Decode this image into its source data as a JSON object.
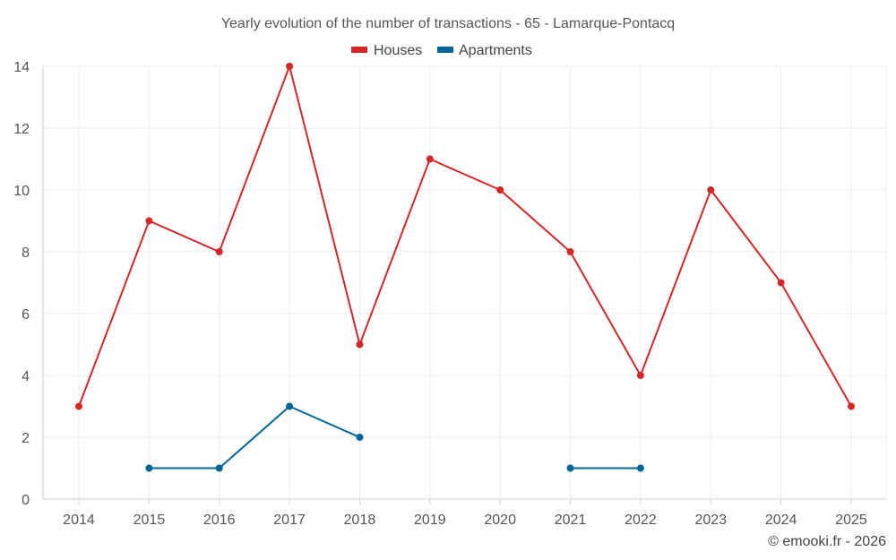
{
  "chart_data": {
    "type": "line",
    "title": "Yearly evolution of the number of transactions - 65 - Lamarque-Pontacq",
    "categories": [
      "2014",
      "2015",
      "2016",
      "2017",
      "2018",
      "2019",
      "2020",
      "2021",
      "2022",
      "2023",
      "2024",
      "2025"
    ],
    "ylim": [
      0,
      14
    ],
    "yticks": [
      0,
      2,
      4,
      6,
      8,
      10,
      12,
      14
    ],
    "grid": true,
    "legend_position": "top-center",
    "series": [
      {
        "name": "Houses",
        "color": "#d62728",
        "values": [
          3,
          9,
          8,
          14,
          5,
          11,
          10,
          8,
          4,
          10,
          7,
          3
        ]
      },
      {
        "name": "Apartments",
        "color": "#006699",
        "values": [
          null,
          1,
          1,
          3,
          2,
          null,
          null,
          1,
          1,
          null,
          null,
          null
        ]
      }
    ]
  },
  "credit": "© emooki.fr - 2026"
}
